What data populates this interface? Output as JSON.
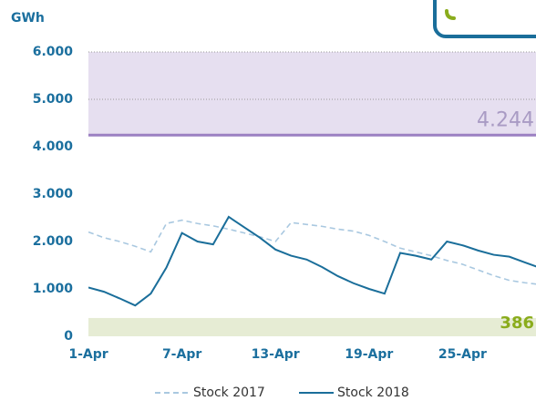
{
  "chart_data": {
    "type": "line",
    "y_label": "GWh",
    "categories": [
      "1-Apr",
      null,
      null,
      null,
      null,
      null,
      "7-Apr",
      null,
      null,
      null,
      null,
      null,
      "13-Apr",
      null,
      null,
      null,
      null,
      null,
      "19-Apr",
      null,
      null,
      null,
      null,
      null,
      "25-Apr",
      null,
      null,
      null,
      null,
      null
    ],
    "series": [
      {
        "name": "Stock 2017",
        "color": "#a9c8e0",
        "dashed": true,
        "values": [
          2200,
          2080,
          2000,
          1900,
          1780,
          2380,
          2450,
          2380,
          2330,
          2260,
          2180,
          2100,
          2000,
          2400,
          2360,
          2320,
          2260,
          2220,
          2130,
          2000,
          1860,
          1780,
          1700,
          1600,
          1520,
          1400,
          1280,
          1180,
          1130,
          1090
        ]
      },
      {
        "name": "Stock 2018",
        "color": "#1a6e9a",
        "dashed": false,
        "values": [
          1030,
          940,
          800,
          650,
          900,
          1450,
          2180,
          2000,
          1940,
          2520,
          2300,
          2080,
          1830,
          1700,
          1620,
          1460,
          1270,
          1120,
          1000,
          900,
          1760,
          1700,
          1620,
          2000,
          1920,
          1810,
          1720,
          1680,
          1560,
          1440
        ]
      }
    ],
    "bands": [
      {
        "from": 4244,
        "to": 6000,
        "label": "4.244",
        "color": "#e6dff0",
        "edge": "#9b80c2",
        "label_color": "#a99bc4"
      },
      {
        "from": 0,
        "to": 386,
        "label": "386",
        "color": "#e6ecd4",
        "edge": null,
        "label_color": "#8aac1c"
      }
    ],
    "ylim": [
      0,
      6000
    ],
    "yticks": [
      0,
      {
        "value": 1000,
        "label": "1.000"
      },
      {
        "value": 2000,
        "label": "2.000"
      },
      {
        "value": 3000,
        "label": "3.000"
      },
      {
        "value": 4000,
        "label": "4.000"
      },
      {
        "value": 5000,
        "label": "5.000"
      },
      {
        "value": 6000,
        "label": "6.000"
      }
    ],
    "grid": true
  }
}
